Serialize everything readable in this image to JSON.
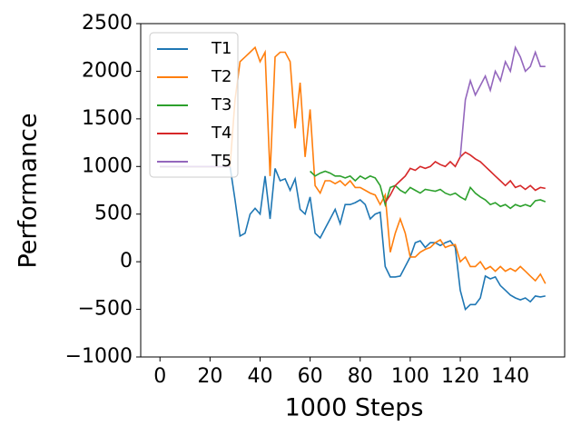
{
  "chart_data": {
    "type": "line",
    "xlabel": "1000 Steps",
    "ylabel": "Performance",
    "x": [
      0,
      2,
      4,
      6,
      8,
      10,
      12,
      14,
      16,
      18,
      20,
      22,
      24,
      26,
      28,
      30,
      32,
      34,
      36,
      38,
      40,
      42,
      44,
      46,
      48,
      50,
      52,
      54,
      56,
      58,
      60,
      62,
      64,
      66,
      68,
      70,
      72,
      74,
      76,
      78,
      80,
      82,
      84,
      86,
      88,
      90,
      92,
      94,
      96,
      98,
      100,
      102,
      104,
      106,
      108,
      110,
      112,
      114,
      116,
      118,
      120,
      122,
      124,
      126,
      128,
      130,
      132,
      134,
      136,
      138,
      140,
      142,
      144,
      146,
      148,
      150,
      152,
      154
    ],
    "series": [
      {
        "name": "T1",
        "color": "#1f77b4",
        "values": [
          1000,
          1000,
          1000,
          1000,
          1000,
          1000,
          1000,
          1000,
          1000,
          1000,
          1000,
          1000,
          1000,
          1000,
          1000,
          650,
          270,
          300,
          500,
          560,
          500,
          900,
          450,
          980,
          850,
          870,
          750,
          870,
          550,
          500,
          680,
          300,
          250,
          350,
          450,
          550,
          400,
          600,
          600,
          620,
          650,
          600,
          450,
          500,
          520,
          -50,
          -160,
          -160,
          -150,
          -50,
          50,
          200,
          220,
          150,
          200,
          200,
          170,
          200,
          220,
          150,
          -300,
          -500,
          -450,
          -450,
          -380,
          -150,
          -180,
          -160,
          -250,
          -300,
          -350,
          -380,
          -400,
          -380,
          -420,
          -360,
          -370,
          -360
        ]
      },
      {
        "name": "T2",
        "color": "#ff7f0e",
        "values": [
          1000,
          1000,
          1000,
          1000,
          1000,
          1000,
          1000,
          1000,
          1000,
          1000,
          1000,
          1000,
          1000,
          1000,
          1000,
          1700,
          2100,
          2150,
          2200,
          2250,
          2100,
          2200,
          900,
          2150,
          2200,
          2200,
          2100,
          1400,
          1880,
          1100,
          1600,
          800,
          720,
          850,
          850,
          820,
          850,
          800,
          850,
          780,
          780,
          750,
          720,
          700,
          600,
          700,
          100,
          300,
          450,
          300,
          50,
          50,
          100,
          130,
          150,
          200,
          230,
          150,
          170,
          180,
          0,
          50,
          -50,
          -50,
          0,
          -80,
          -50,
          -100,
          -50,
          -100,
          -70,
          -100,
          -50,
          -100,
          -150,
          -200,
          -130,
          -230
        ]
      },
      {
        "name": "T3",
        "color": "#2ca02c",
        "values": [
          1000,
          1000,
          1000,
          1000,
          1000,
          1000,
          1000,
          1000,
          1000,
          1000,
          1000,
          1000,
          1000,
          1000,
          1000,
          null,
          null,
          null,
          null,
          null,
          null,
          null,
          null,
          null,
          null,
          null,
          null,
          null,
          null,
          null,
          950,
          900,
          930,
          950,
          930,
          900,
          900,
          880,
          900,
          850,
          900,
          870,
          900,
          880,
          800,
          600,
          780,
          800,
          750,
          720,
          780,
          750,
          720,
          760,
          750,
          740,
          760,
          720,
          700,
          720,
          680,
          650,
          780,
          720,
          680,
          650,
          600,
          620,
          580,
          600,
          560,
          600,
          580,
          600,
          580,
          640,
          650,
          630
        ]
      },
      {
        "name": "T4",
        "color": "#d62728",
        "values": [
          1000,
          1000,
          1000,
          1000,
          1000,
          1000,
          1000,
          1000,
          1000,
          1000,
          1000,
          1000,
          1000,
          1000,
          1000,
          null,
          null,
          null,
          null,
          null,
          null,
          null,
          null,
          null,
          null,
          null,
          null,
          null,
          null,
          null,
          null,
          null,
          null,
          null,
          null,
          null,
          null,
          null,
          null,
          null,
          null,
          null,
          null,
          null,
          null,
          620,
          700,
          800,
          850,
          900,
          980,
          960,
          1000,
          980,
          1000,
          1050,
          1020,
          1000,
          1050,
          1000,
          1100,
          1150,
          1120,
          1080,
          1050,
          1000,
          950,
          900,
          850,
          800,
          850,
          780,
          800,
          760,
          800,
          750,
          780,
          770
        ]
      },
      {
        "name": "T5",
        "color": "#9467bd",
        "values": [
          1000,
          1000,
          1000,
          1000,
          1000,
          1000,
          1000,
          1000,
          1000,
          1000,
          1000,
          1000,
          1000,
          1000,
          1000,
          null,
          null,
          null,
          null,
          null,
          null,
          null,
          null,
          null,
          null,
          null,
          null,
          null,
          null,
          null,
          null,
          null,
          null,
          null,
          null,
          null,
          null,
          null,
          null,
          null,
          null,
          null,
          null,
          null,
          null,
          null,
          null,
          null,
          null,
          null,
          null,
          null,
          null,
          null,
          null,
          null,
          null,
          null,
          null,
          null,
          1100,
          1700,
          1900,
          1750,
          1850,
          1950,
          1800,
          2000,
          1900,
          2100,
          2000,
          2250,
          2150,
          2000,
          2050,
          2200,
          2050,
          2050
        ]
      }
    ],
    "xlim": [
      -7.7,
      161.7
    ],
    "ylim": [
      -1000,
      2500
    ],
    "xticks": [
      0,
      20,
      40,
      60,
      80,
      100,
      120,
      140
    ],
    "yticks": [
      {
        "value": -1000,
        "label": "−1000"
      },
      {
        "value": -500,
        "label": "−500"
      },
      0,
      500,
      1000,
      1500,
      2000,
      2500
    ],
    "legend": "upper left",
    "grid": false
  }
}
